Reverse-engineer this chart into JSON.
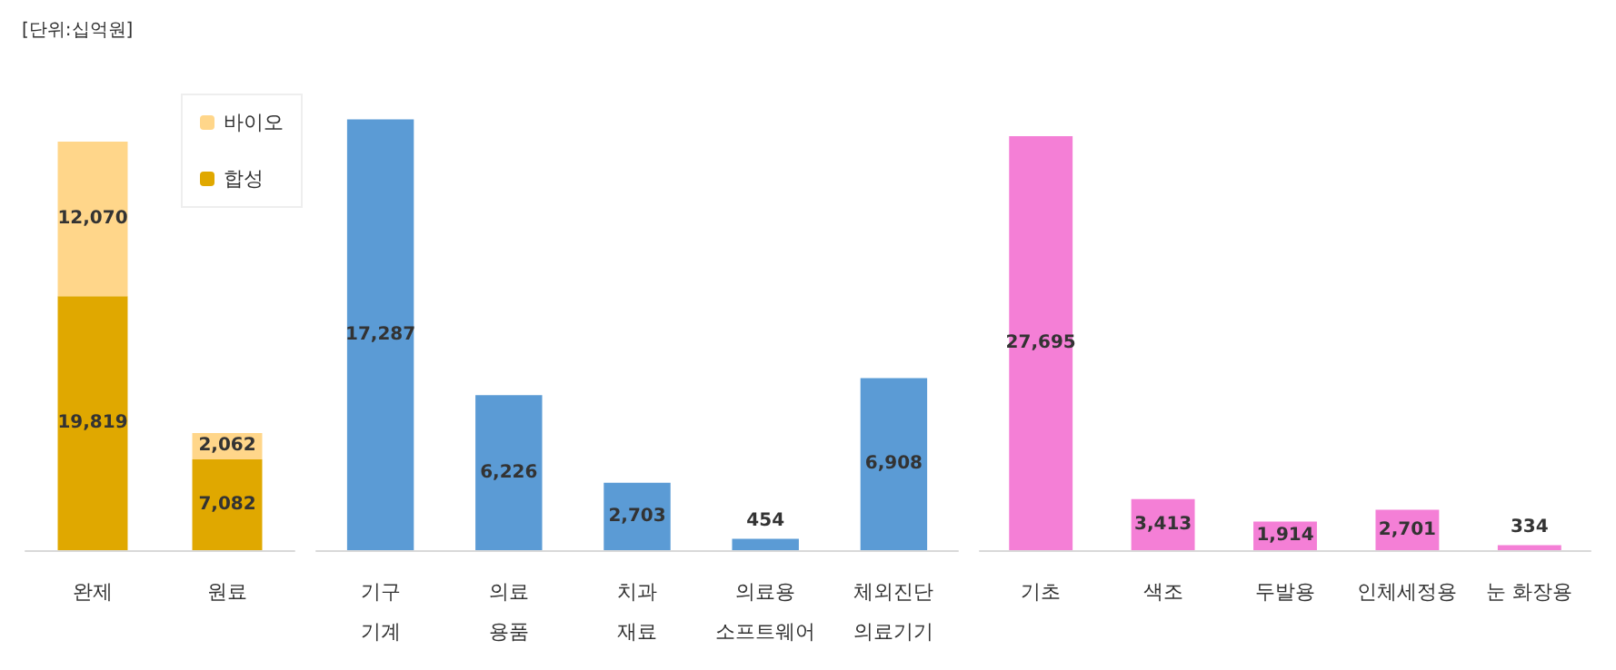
{
  "chart_data": [
    {
      "type": "bar",
      "stacked": true,
      "annotations": [
        "[단위:십억원]"
      ],
      "categories": [
        "완제",
        "원료"
      ],
      "legend": "top right",
      "series": [
        {
          "name": "합성",
          "color": "#e0a800",
          "values": [
            19819,
            7082
          ],
          "value_labels": [
            "19,819",
            "7,082"
          ]
        },
        {
          "name": "바이오",
          "color": "#ffd68a",
          "values": [
            12070,
            2062
          ],
          "value_labels": [
            "12,070",
            "2,062"
          ]
        }
      ]
    },
    {
      "type": "bar",
      "categories": [
        "기구\n기계",
        "의료\n용품",
        "치과\n재료",
        "의료용\n소프트웨어",
        "체외진단\n의료기기"
      ],
      "color": "#5b9bd5",
      "values": [
        17287,
        6226,
        2703,
        454,
        6908
      ],
      "value_labels": [
        "17,287",
        "6,226",
        "2,703",
        "454",
        "6,908"
      ]
    },
    {
      "type": "bar",
      "categories": [
        "기초",
        "색조",
        "두발용",
        "인체세정용",
        "눈 화장용"
      ],
      "color": "#f47fd6",
      "values": [
        27695,
        3413,
        1914,
        2701,
        334
      ],
      "value_labels": [
        "27,695",
        "3,413",
        "1,914",
        "2,701",
        "334"
      ]
    }
  ]
}
